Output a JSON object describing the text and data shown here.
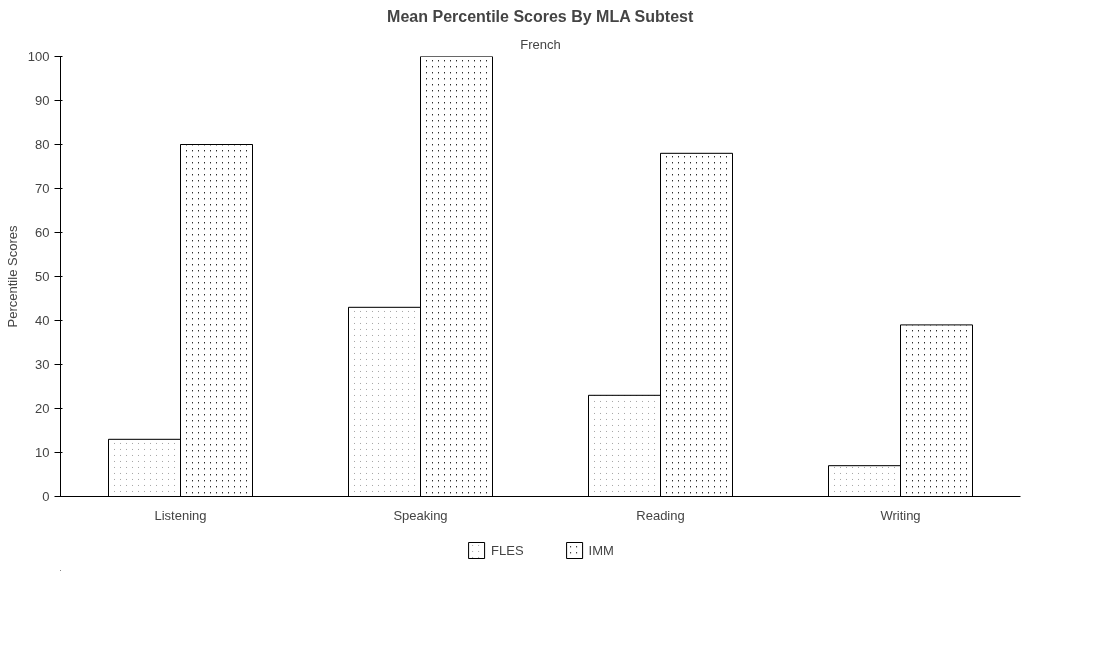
{
  "chart_data": {
    "type": "bar",
    "title": "Mean Percentile Scores By MLA Subtest",
    "subtitle": "French",
    "ylabel": "Percentile Scores",
    "categories": [
      "Listening",
      "Speaking",
      "Reading",
      "Writing"
    ],
    "series": [
      {
        "name": "FLES",
        "color": "#000000",
        "values": [
          13,
          43,
          23,
          7
        ]
      },
      {
        "name": "IMM",
        "color": "#000000",
        "values": [
          80,
          100,
          78,
          39
        ]
      }
    ],
    "ylim": [
      0,
      100
    ],
    "yticks": [
      0,
      10,
      20,
      30,
      40,
      50,
      60,
      70,
      80,
      90,
      100
    ],
    "grid": false,
    "legend": "bottom"
  }
}
